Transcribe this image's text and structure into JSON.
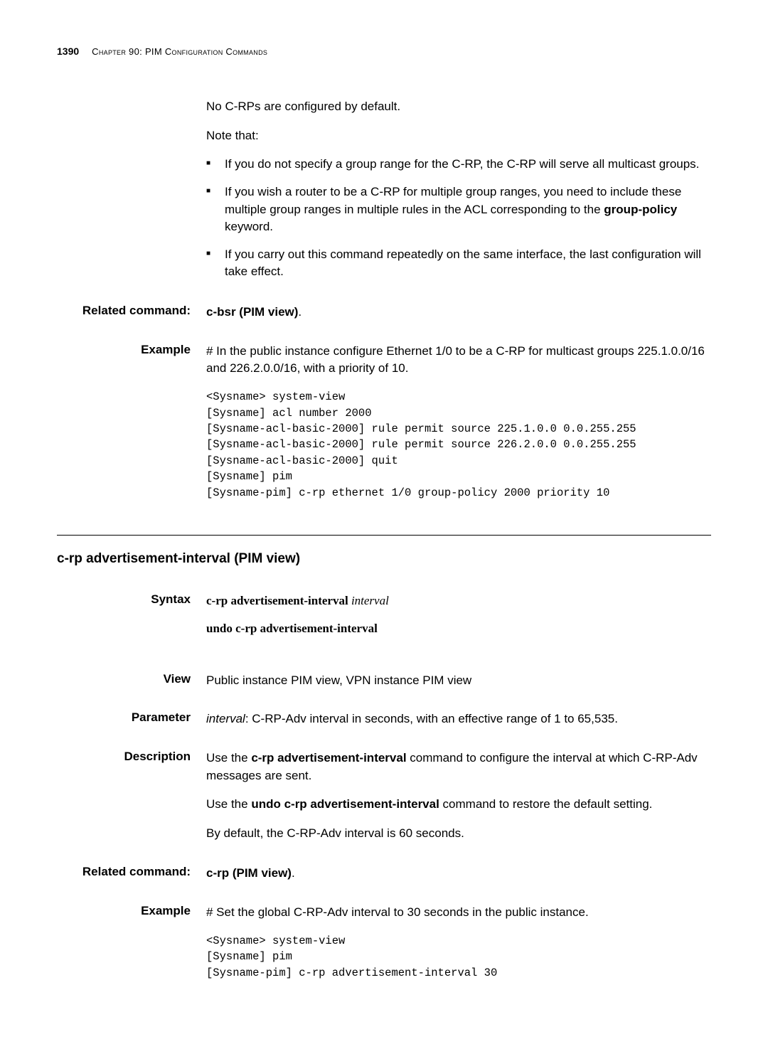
{
  "header": {
    "page_number": "1390",
    "chapter_label": "Chapter 90: PIM Configuration Commands"
  },
  "top_block": {
    "intro_line": "No C-RPs are configured by default.",
    "note_intro": "Note that:",
    "bullets": [
      {
        "pre": "If you do not specify a group range for the C-RP, the C-RP will serve all multicast groups."
      },
      {
        "pre": "If you wish a router to be a C-RP for multiple group ranges, you need to include these multiple group ranges in multiple rules in the ACL corresponding to the ",
        "bold": "group-policy",
        "post": " keyword."
      },
      {
        "pre": "If you carry out this command repeatedly on the same interface, the last configuration will take effect."
      }
    ]
  },
  "related1": {
    "label": "Related command:",
    "text": "c-bsr (PIM view)"
  },
  "example1": {
    "label": "Example",
    "desc": "# In the public instance configure Ethernet 1/0 to be a C-RP for multicast groups 225.1.0.0/16 and 226.2.0.0/16, with a priority of 10.",
    "code": "<Sysname> system-view\n[Sysname] acl number 2000\n[Sysname-acl-basic-2000] rule permit source 225.1.0.0 0.0.255.255\n[Sysname-acl-basic-2000] rule permit source 226.2.0.0 0.0.255.255\n[Sysname-acl-basic-2000] quit\n[Sysname] pim\n[Sysname-pim] c-rp ethernet 1/0 group-policy 2000 priority 10"
  },
  "section2": {
    "title": "c-rp advertisement-interval (PIM view)",
    "syntax": {
      "label": "Syntax",
      "cmd_bold": "c-rp advertisement-interval",
      "cmd_italic": " interval",
      "undo_bold": "undo c-rp advertisement-interval"
    },
    "view": {
      "label": "View",
      "text": "Public instance PIM view, VPN instance PIM view"
    },
    "parameter": {
      "label": "Parameter",
      "italic": "interval",
      "text": ": C-RP-Adv interval in seconds, with an effective range of 1 to 65,535."
    },
    "description": {
      "label": "Description",
      "p1_pre": "Use the ",
      "p1_bold": "c-rp advertisement-interval",
      "p1_post": " command to configure the interval at which C-RP-Adv messages are sent.",
      "p2_pre": "Use the ",
      "p2_bold": "undo c-rp advertisement-interval",
      "p2_post": " command to restore the default setting.",
      "p3": "By default, the C-RP-Adv interval is 60 seconds."
    },
    "related": {
      "label": "Related command:",
      "text": "c-rp (PIM view)"
    },
    "example": {
      "label": "Example",
      "desc": "# Set the global C-RP-Adv interval to 30 seconds in the public instance.",
      "code": "<Sysname> system-view\n[Sysname] pim\n[Sysname-pim] c-rp advertisement-interval 30"
    }
  }
}
